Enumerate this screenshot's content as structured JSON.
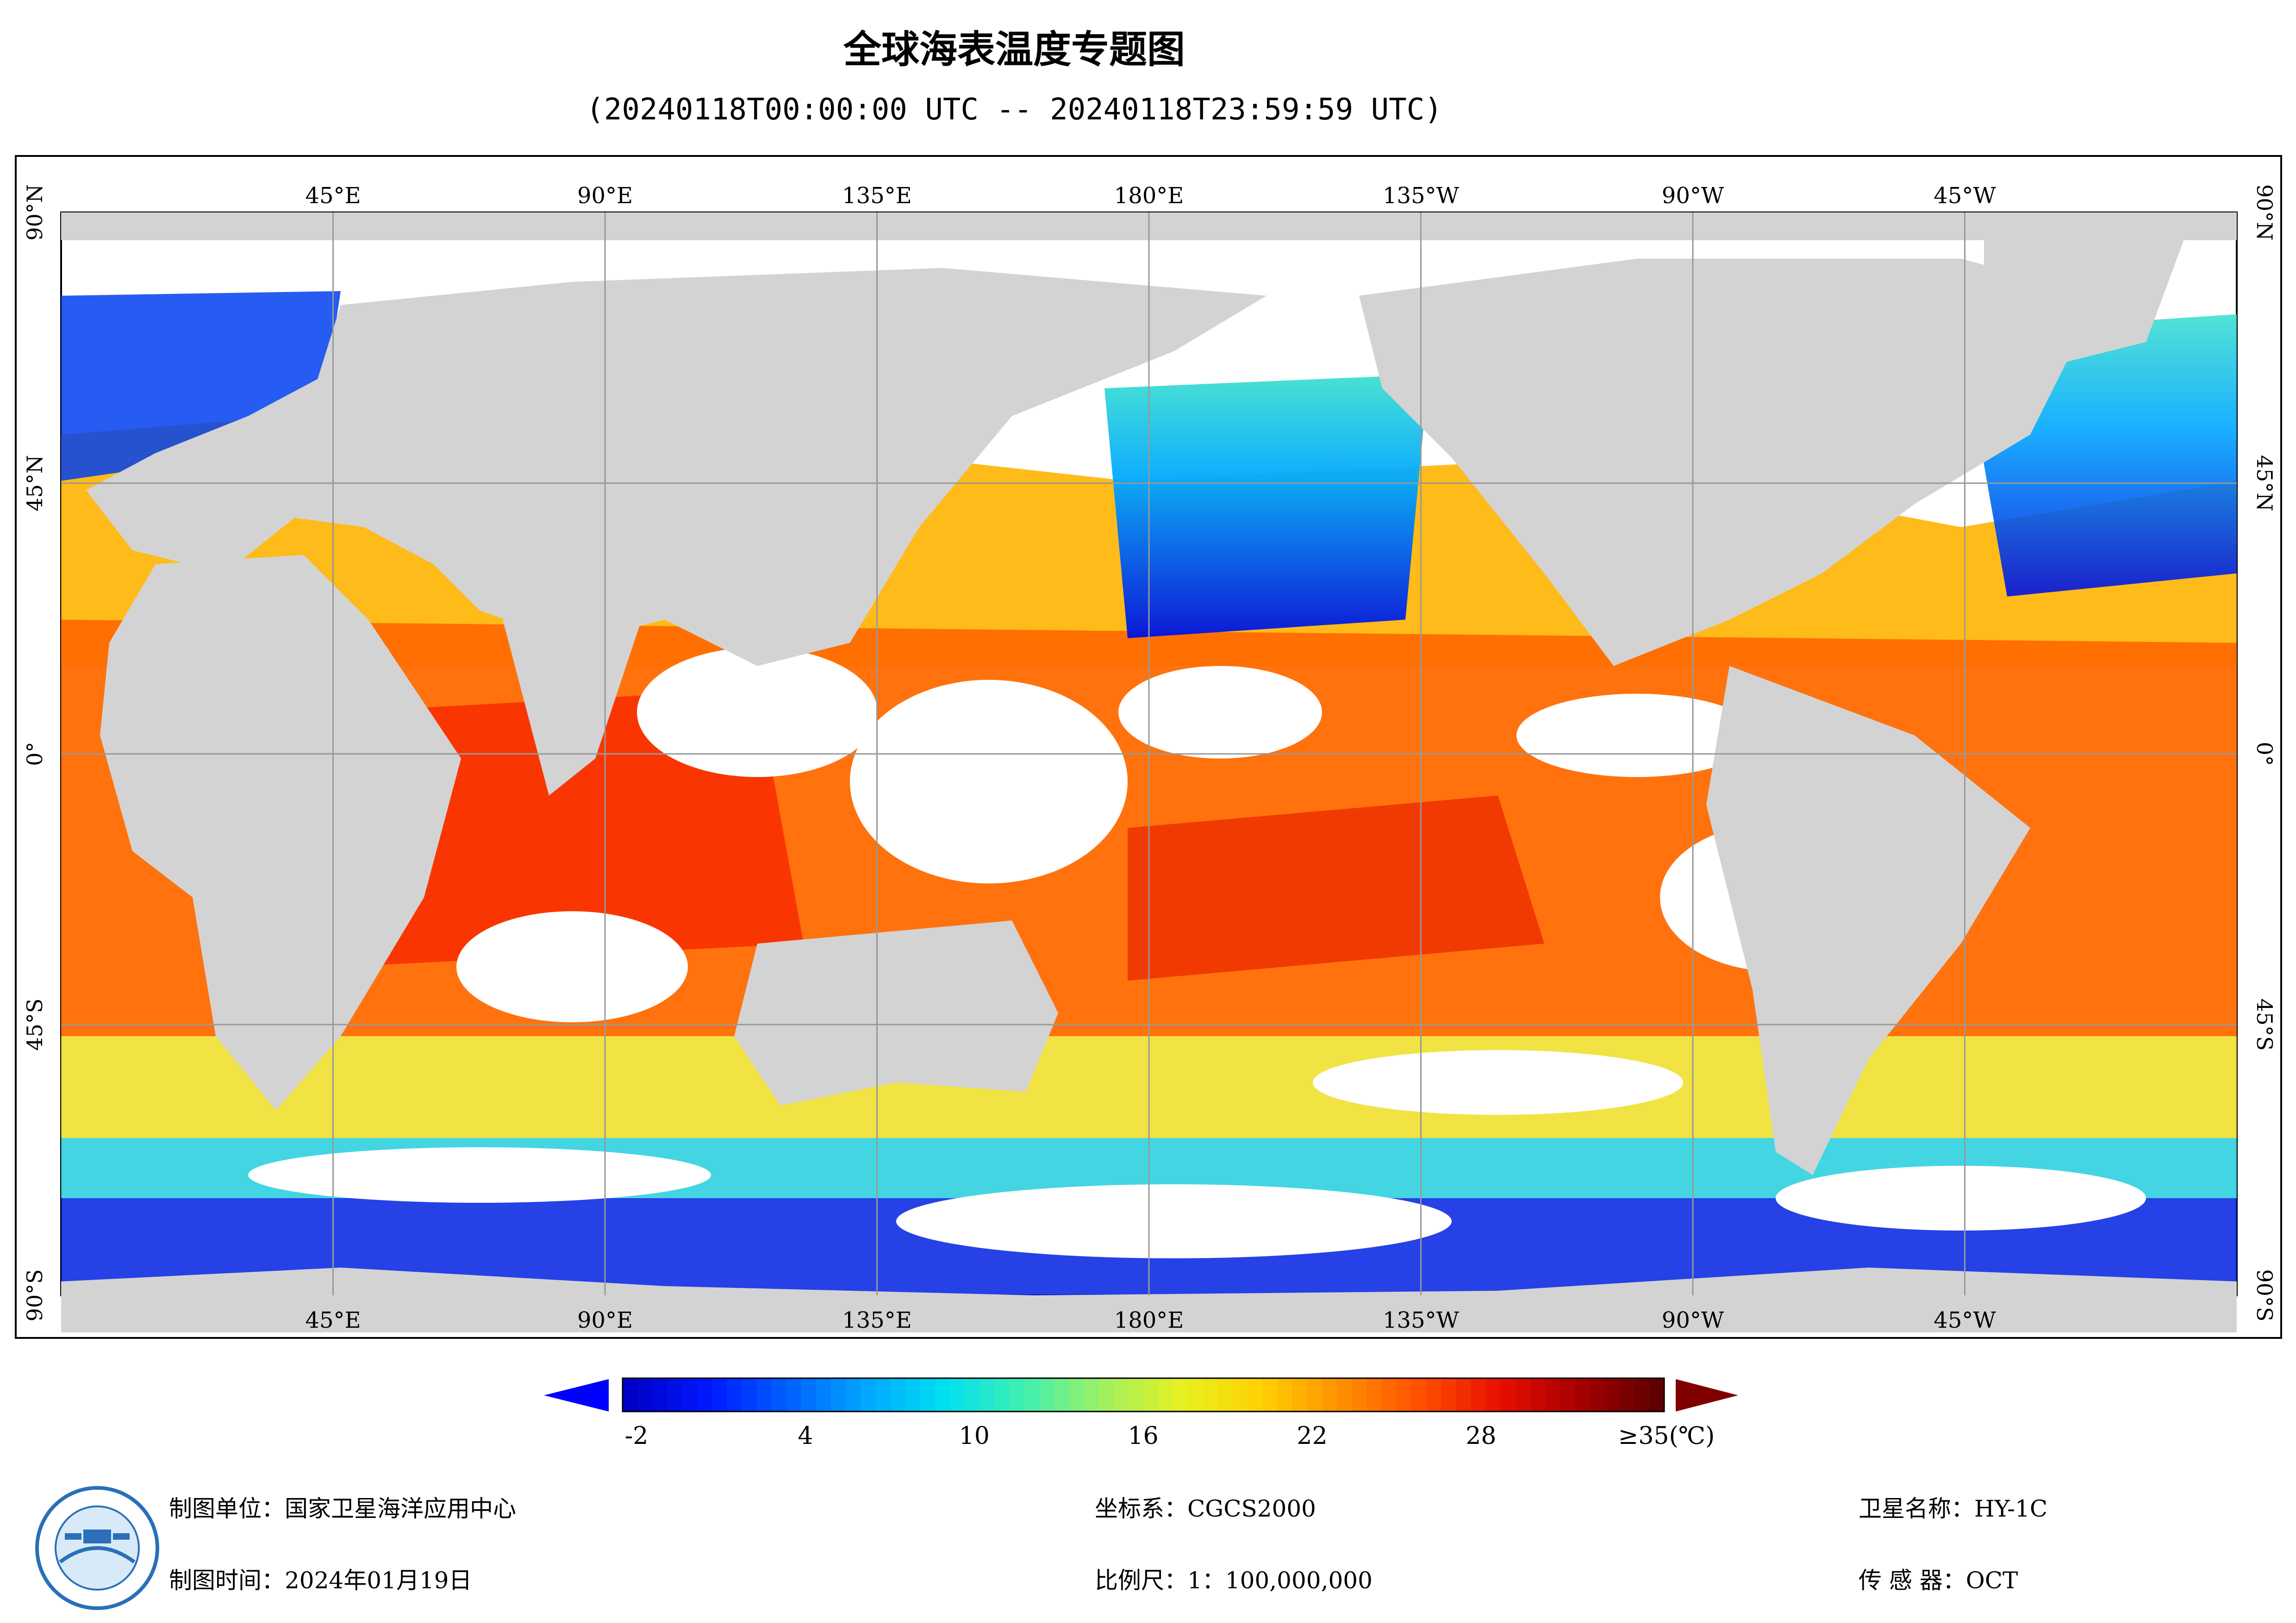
{
  "title": "全球海表温度专题图",
  "subtitle": "(20240118T00:00:00 UTC -- 20240118T23:59:59 UTC)",
  "axes": {
    "top_longitudes": [
      "45°E",
      "90°E",
      "135°E",
      "180°E",
      "135°W",
      "90°W",
      "45°W"
    ],
    "bottom_longitudes": [
      "45°E",
      "90°E",
      "135°E",
      "180°E",
      "135°W",
      "90°W",
      "45°W"
    ],
    "latitudes": [
      "90°N",
      "45°N",
      "0°",
      "45°S",
      "90°S"
    ]
  },
  "legend": {
    "labels": [
      "-2",
      "4",
      "10",
      "16",
      "22",
      "28",
      "≥35(℃)"
    ],
    "min": -2,
    "max": 35,
    "colors": [
      "#0000c8",
      "#0018ff",
      "#0060ff",
      "#00a8ff",
      "#00e0f0",
      "#40f0b0",
      "#a0f060",
      "#e8f020",
      "#ffd000",
      "#ff9000",
      "#ff5000",
      "#e81000",
      "#a80000",
      "#600000"
    ]
  },
  "footer": {
    "producer": "制图单位：国家卫星海洋应用中心",
    "date": "制图时间：2024年01月19日",
    "crs": "坐标系：CGCS2000",
    "scale": "比例尺：1：100,000,000",
    "satellite": "卫星名称：HY-1C",
    "sensor": "传  感  器：OCT"
  },
  "colors": {
    "land": "#d3d3d3",
    "graticule": "#999999",
    "no_data": "#ffffff"
  }
}
